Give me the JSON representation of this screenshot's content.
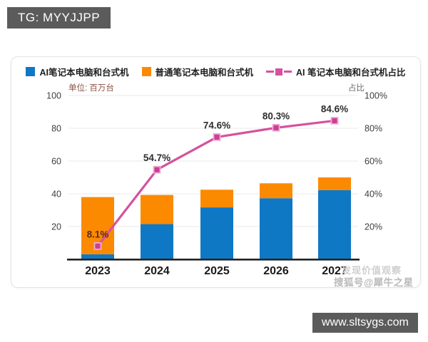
{
  "header": {
    "tg_label": "TG: MYYJJPP"
  },
  "watermark": {
    "line1": "发现价值观察",
    "line2": "搜狐号@犀牛之星"
  },
  "footer": {
    "site_url": "www.sltsygs.com"
  },
  "chart_data": {
    "type": "bar",
    "subtype": "stacked-bars-with-line-overlay",
    "categories": [
      "2023",
      "2024",
      "2025",
      "2026",
      "2027"
    ],
    "series": [
      {
        "name": "AI笔记本电脑和台式机",
        "kind": "bar",
        "stack": true,
        "color": "#0f78c5",
        "values": [
          3.1,
          21.5,
          31.7,
          37.3,
          42.3
        ]
      },
      {
        "name": "普通笔记本电脑和台式机",
        "kind": "bar",
        "stack": true,
        "color": "#fb8a00",
        "values": [
          34.9,
          17.8,
          10.8,
          9.1,
          7.7
        ]
      },
      {
        "name": "AI 笔记本电脑和台式机占比",
        "kind": "line",
        "axis": "right",
        "color": "#d6519d",
        "marker_fill": "#cb3f94",
        "marker_stroke": "#f0abd4",
        "values": [
          8.1,
          54.7,
          74.6,
          80.3,
          84.6
        ]
      }
    ],
    "point_labels": [
      {
        "text": "8.1%",
        "color": "#5f2b19"
      },
      {
        "text": "54.7%",
        "color": "#2e2e2e"
      },
      {
        "text": "74.6%",
        "color": "#2e2e2e"
      },
      {
        "text": "80.3%",
        "color": "#2e2e2e"
      },
      {
        "text": "84.6%",
        "color": "#2e2e2e"
      }
    ],
    "left_axis": {
      "title": "单位: 百万台",
      "title_color": "#8a5244",
      "ticks": [
        100,
        80,
        60,
        40,
        20
      ],
      "range": [
        0,
        100
      ]
    },
    "right_axis": {
      "title": "占比",
      "title_color": "#6a6a6a",
      "ticks": [
        "100%",
        "80%",
        "60%",
        "40%",
        "20%"
      ],
      "range": [
        0,
        100
      ]
    },
    "grid": true,
    "legend_position": "top",
    "colors": {
      "grid_line": "#e8e8e8",
      "base_line": "#222222"
    }
  }
}
